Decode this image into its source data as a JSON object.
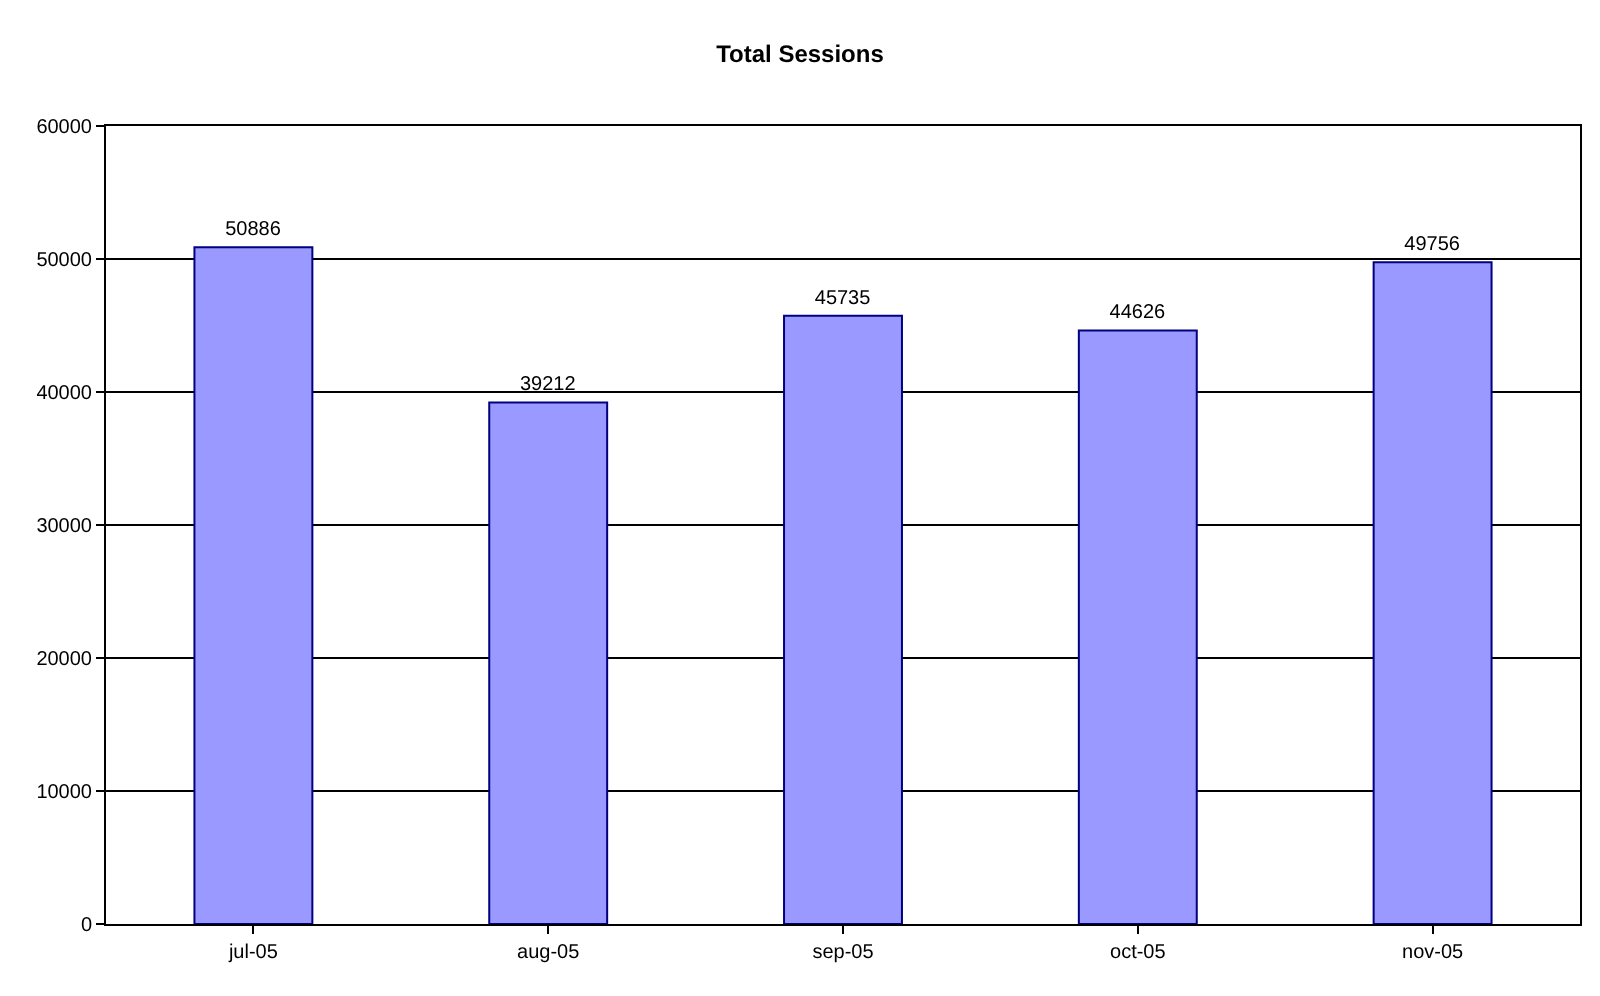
{
  "chart_data": {
    "type": "bar",
    "title": "Total Sessions",
    "categories": [
      "jul-05",
      "aug-05",
      "sep-05",
      "oct-05",
      "nov-05"
    ],
    "values": [
      50886,
      39212,
      45735,
      44626,
      49756
    ],
    "color": "#9999ff",
    "ylim": [
      0,
      60000
    ],
    "yticks": [
      0,
      10000,
      20000,
      30000,
      40000,
      50000,
      60000
    ],
    "grid": "y",
    "data_labels": true
  }
}
